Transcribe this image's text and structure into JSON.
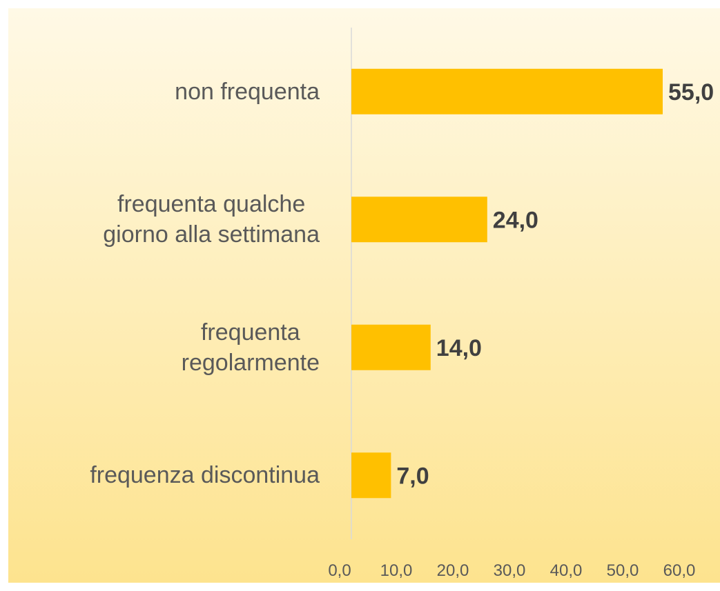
{
  "chart_data": {
    "type": "bar",
    "orientation": "horizontal",
    "categories": [
      "non frequenta",
      "frequenta qualche\ngiorno alla settimana",
      "frequenta\nregolarmente",
      "frequenza discontinua"
    ],
    "values": [
      55,
      24,
      14,
      7
    ],
    "value_labels": [
      "55,0",
      "24,0",
      "14,0",
      "7,0"
    ],
    "color": "#ffc000",
    "xlim": [
      0,
      60
    ],
    "xticks": [
      {
        "value": 0,
        "label": "0,0"
      },
      {
        "value": 10,
        "label": "10,0"
      },
      {
        "value": 20,
        "label": "20,0"
      },
      {
        "value": 30,
        "label": "30,0"
      },
      {
        "value": 40,
        "label": "40,0"
      },
      {
        "value": 50,
        "label": "50,0"
      },
      {
        "value": 60,
        "label": "60,0"
      }
    ]
  }
}
